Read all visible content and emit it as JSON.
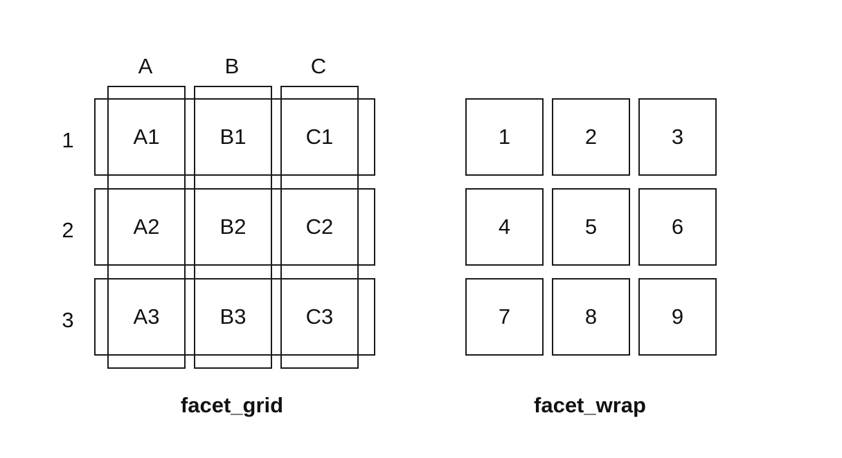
{
  "facet_grid": {
    "title": "facet_grid",
    "column_labels": [
      "A",
      "B",
      "C"
    ],
    "row_labels": [
      "1",
      "2",
      "3"
    ],
    "cells": [
      [
        "A1",
        "B1",
        "C1"
      ],
      [
        "A2",
        "B2",
        "C2"
      ],
      [
        "A3",
        "B3",
        "C3"
      ]
    ]
  },
  "facet_wrap": {
    "title": "facet_wrap",
    "cells": [
      "1",
      "2",
      "3",
      "4",
      "5",
      "6",
      "7",
      "8",
      "9"
    ]
  },
  "colors": {
    "stroke": "#1a1a1a",
    "background": "#ffffff"
  }
}
